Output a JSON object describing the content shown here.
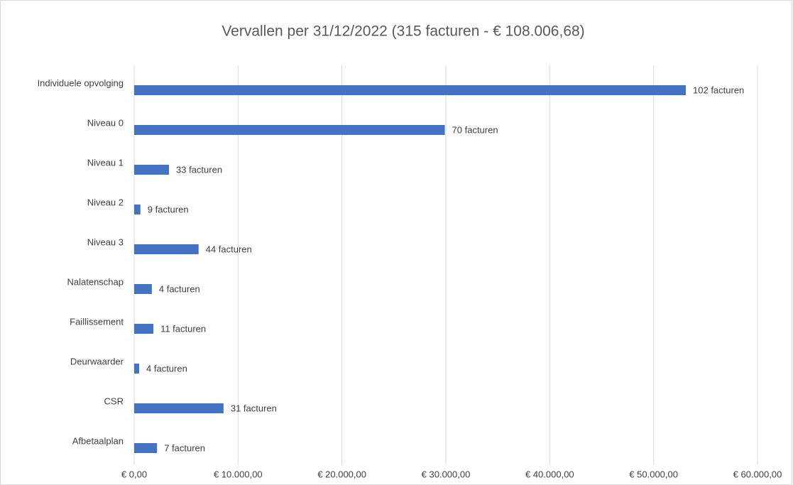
{
  "chart_data": {
    "type": "barh",
    "title": "Vervallen per 31/12/2022 (315 facturen - € 108.006,68)",
    "categories": [
      "Individuele opvolging",
      "Niveau 0",
      "Niveau 1",
      "Niveau 2",
      "Niveau 3",
      "Nalatenschap",
      "Faillissement",
      "Deurwaarder",
      "CSR",
      "Afbetaalplan"
    ],
    "values": [
      53100,
      29900,
      3350,
      600,
      6200,
      1700,
      1850,
      480,
      8600,
      2200
    ],
    "data_labels": [
      "102 facturen",
      "70 facturen",
      "33 facturen",
      "9 facturen",
      "44 facturen",
      "4 facturen",
      "11 facturen",
      "4 facturen",
      "31 facturen",
      "7 facturen"
    ],
    "color": "#4472c4",
    "xlim": [
      0,
      60000
    ],
    "xticks": [
      {
        "value": 0,
        "label": "€ 0,00"
      },
      {
        "value": 10000,
        "label": "€ 10.000,00"
      },
      {
        "value": 20000,
        "label": "€ 20.000,00"
      },
      {
        "value": 30000,
        "label": "€ 30.000,00"
      },
      {
        "value": 40000,
        "label": "€ 40.000,00"
      },
      {
        "value": 50000,
        "label": "€ 50.000,00"
      },
      {
        "value": 60000,
        "label": "€ 60.000,00"
      }
    ],
    "grid": true
  }
}
